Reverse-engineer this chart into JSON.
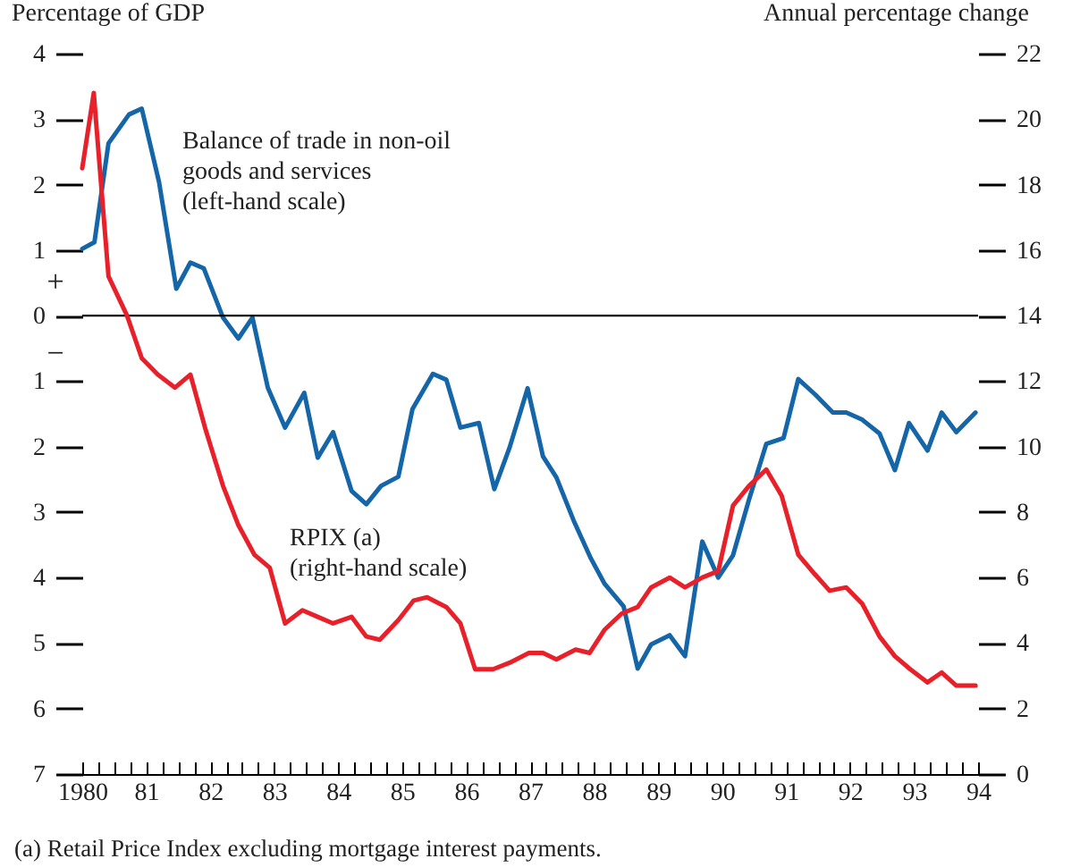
{
  "chart_data": {
    "type": "line",
    "ylabel": "Percentage of GDP",
    "y2label": "Annual percentage change",
    "xlim": [
      1980,
      1994
    ],
    "xticks": [
      {
        "value": 1980,
        "label": "1980"
      },
      {
        "value": 1980.25,
        "label": null
      },
      {
        "value": 1980.5,
        "label": null
      },
      {
        "value": 1980.75,
        "label": null
      },
      {
        "value": 1981,
        "label": "81"
      },
      {
        "value": 1981.25,
        "label": null
      },
      {
        "value": 1981.5,
        "label": null
      },
      {
        "value": 1981.75,
        "label": null
      },
      {
        "value": 1982,
        "label": "82"
      },
      {
        "value": 1982.25,
        "label": null
      },
      {
        "value": 1982.5,
        "label": null
      },
      {
        "value": 1982.75,
        "label": null
      },
      {
        "value": 1983,
        "label": "83"
      },
      {
        "value": 1983.25,
        "label": null
      },
      {
        "value": 1983.5,
        "label": null
      },
      {
        "value": 1983.75,
        "label": null
      },
      {
        "value": 1984,
        "label": "84"
      },
      {
        "value": 1984.25,
        "label": null
      },
      {
        "value": 1984.5,
        "label": null
      },
      {
        "value": 1984.75,
        "label": null
      },
      {
        "value": 1985,
        "label": "85"
      },
      {
        "value": 1985.25,
        "label": null
      },
      {
        "value": 1985.5,
        "label": null
      },
      {
        "value": 1985.75,
        "label": null
      },
      {
        "value": 1986,
        "label": "86"
      },
      {
        "value": 1986.25,
        "label": null
      },
      {
        "value": 1986.5,
        "label": null
      },
      {
        "value": 1986.75,
        "label": null
      },
      {
        "value": 1987,
        "label": "87"
      },
      {
        "value": 1987.25,
        "label": null
      },
      {
        "value": 1987.5,
        "label": null
      },
      {
        "value": 1987.75,
        "label": null
      },
      {
        "value": 1988,
        "label": "88"
      },
      {
        "value": 1988.25,
        "label": null
      },
      {
        "value": 1988.5,
        "label": null
      },
      {
        "value": 1988.75,
        "label": null
      },
      {
        "value": 1989,
        "label": "89"
      },
      {
        "value": 1989.25,
        "label": null
      },
      {
        "value": 1989.5,
        "label": null
      },
      {
        "value": 1989.75,
        "label": null
      },
      {
        "value": 1990,
        "label": "90"
      },
      {
        "value": 1990.25,
        "label": null
      },
      {
        "value": 1990.5,
        "label": null
      },
      {
        "value": 1990.75,
        "label": null
      },
      {
        "value": 1991,
        "label": "91"
      },
      {
        "value": 1991.25,
        "label": null
      },
      {
        "value": 1991.5,
        "label": null
      },
      {
        "value": 1991.75,
        "label": null
      },
      {
        "value": 1992,
        "label": "92"
      },
      {
        "value": 1992.25,
        "label": null
      },
      {
        "value": 1992.5,
        "label": null
      },
      {
        "value": 1992.75,
        "label": null
      },
      {
        "value": 1993,
        "label": "93"
      },
      {
        "value": 1993.25,
        "label": null
      },
      {
        "value": 1993.5,
        "label": null
      },
      {
        "value": 1993.75,
        "label": null
      },
      {
        "value": 1994,
        "label": "94"
      }
    ],
    "ylim": [
      -7,
      4
    ],
    "yticks": [
      4,
      3,
      2,
      1,
      0,
      {
        "value": -1,
        "label": "1"
      },
      {
        "value": -2,
        "label": "2"
      },
      {
        "value": -3,
        "label": "3"
      },
      {
        "value": -4,
        "label": "4"
      },
      {
        "value": -5,
        "label": "5"
      },
      {
        "value": -6,
        "label": "6"
      },
      {
        "value": -7,
        "label": "7"
      }
    ],
    "y2lim": [
      0,
      22
    ],
    "y2ticks": [
      0,
      2,
      4,
      6,
      8,
      10,
      12,
      14,
      16,
      18,
      20,
      22
    ],
    "grid": false,
    "legend": false,
    "ref_lines": [
      {
        "axis": "y",
        "value": 0,
        "color": "#000000"
      }
    ],
    "annotations": [
      "+",
      "−",
      "(a)    Retail Price Index excluding mortgage interest payments."
    ],
    "series": [
      {
        "name": "Balance of trade in non-oil goods and services (left-hand scale)",
        "color": "#1466a8",
        "x": [
          1980,
          1980.19,
          1980.41,
          1980.73,
          1980.93,
          1981.2,
          1981.47,
          1981.69,
          1981.9,
          1982.2,
          1982.44,
          1982.66,
          1982.9,
          1983.17,
          1983.47,
          1983.68,
          1983.92,
          1984.21,
          1984.44,
          1984.67,
          1984.94,
          1985.16,
          1985.48,
          1985.69,
          1985.91,
          1986.2,
          1986.44,
          1986.68,
          1986.96,
          1987.2,
          1987.41,
          1987.68,
          1987.95,
          1988.16,
          1988.46,
          1988.68,
          1988.89,
          1989.18,
          1989.42,
          1989.69,
          1989.94,
          1990.17,
          1990.42,
          1990.69,
          1990.96,
          1991.19,
          1991.46,
          1991.73,
          1991.94,
          1992.19,
          1992.46,
          1992.7,
          1992.92,
          1993.21,
          1993.43,
          1993.66,
          1993.96
        ],
        "values": [
          1.02,
          1.12,
          2.63,
          3.07,
          3.16,
          2.04,
          0.41,
          0.81,
          0.72,
          -0.03,
          -0.35,
          -0.03,
          -1.1,
          -1.71,
          -1.18,
          -2.17,
          -1.78,
          -2.68,
          -2.88,
          -2.6,
          -2.46,
          -1.43,
          -0.89,
          -0.98,
          -1.71,
          -1.64,
          -2.65,
          -2.01,
          -1.11,
          -2.15,
          -2.47,
          -3.13,
          -3.71,
          -4.09,
          -4.44,
          -5.39,
          -5.02,
          -4.88,
          -5.2,
          -3.45,
          -4.0,
          -3.66,
          -2.81,
          -1.96,
          -1.87,
          -0.97,
          -1.21,
          -1.48,
          -1.48,
          -1.59,
          -1.8,
          -2.36,
          -1.64,
          -2.06,
          -1.48,
          -1.78,
          -1.48
        ]
      },
      {
        "name": "RPIX (a) (right-hand scale)",
        "color": "#e8202a",
        "axis": "y2",
        "x": [
          1980,
          1980.18,
          1980.41,
          1980.7,
          1980.93,
          1981.18,
          1981.45,
          1981.69,
          1981.93,
          1982.2,
          1982.44,
          1982.69,
          1982.93,
          1983.17,
          1983.44,
          1983.68,
          1983.92,
          1984.21,
          1984.44,
          1984.65,
          1984.94,
          1985.18,
          1985.39,
          1985.69,
          1985.91,
          1986.14,
          1986.42,
          1986.68,
          1986.98,
          1987.2,
          1987.41,
          1987.71,
          1987.93,
          1988.16,
          1988.43,
          1988.68,
          1988.89,
          1989.18,
          1989.42,
          1989.69,
          1989.94,
          1990.17,
          1990.42,
          1990.69,
          1990.93,
          1991.19,
          1991.45,
          1991.68,
          1991.94,
          1992.19,
          1992.46,
          1992.7,
          1992.94,
          1993.21,
          1993.43,
          1993.66,
          1993.96
        ],
        "values": [
          18.5,
          20.8,
          15.2,
          14.0,
          12.7,
          12.2,
          11.8,
          12.2,
          10.5,
          8.8,
          7.6,
          6.7,
          6.3,
          4.6,
          5.0,
          4.8,
          4.6,
          4.8,
          4.2,
          4.1,
          4.7,
          5.3,
          5.4,
          5.1,
          4.6,
          3.2,
          3.2,
          3.4,
          3.7,
          3.7,
          3.5,
          3.8,
          3.7,
          4.4,
          4.9,
          5.1,
          5.7,
          6.0,
          5.7,
          6.0,
          6.2,
          8.2,
          8.8,
          9.3,
          8.5,
          6.7,
          6.1,
          5.6,
          5.7,
          5.2,
          4.2,
          3.6,
          3.2,
          2.8,
          3.1,
          2.7,
          2.7
        ]
      }
    ]
  }
}
